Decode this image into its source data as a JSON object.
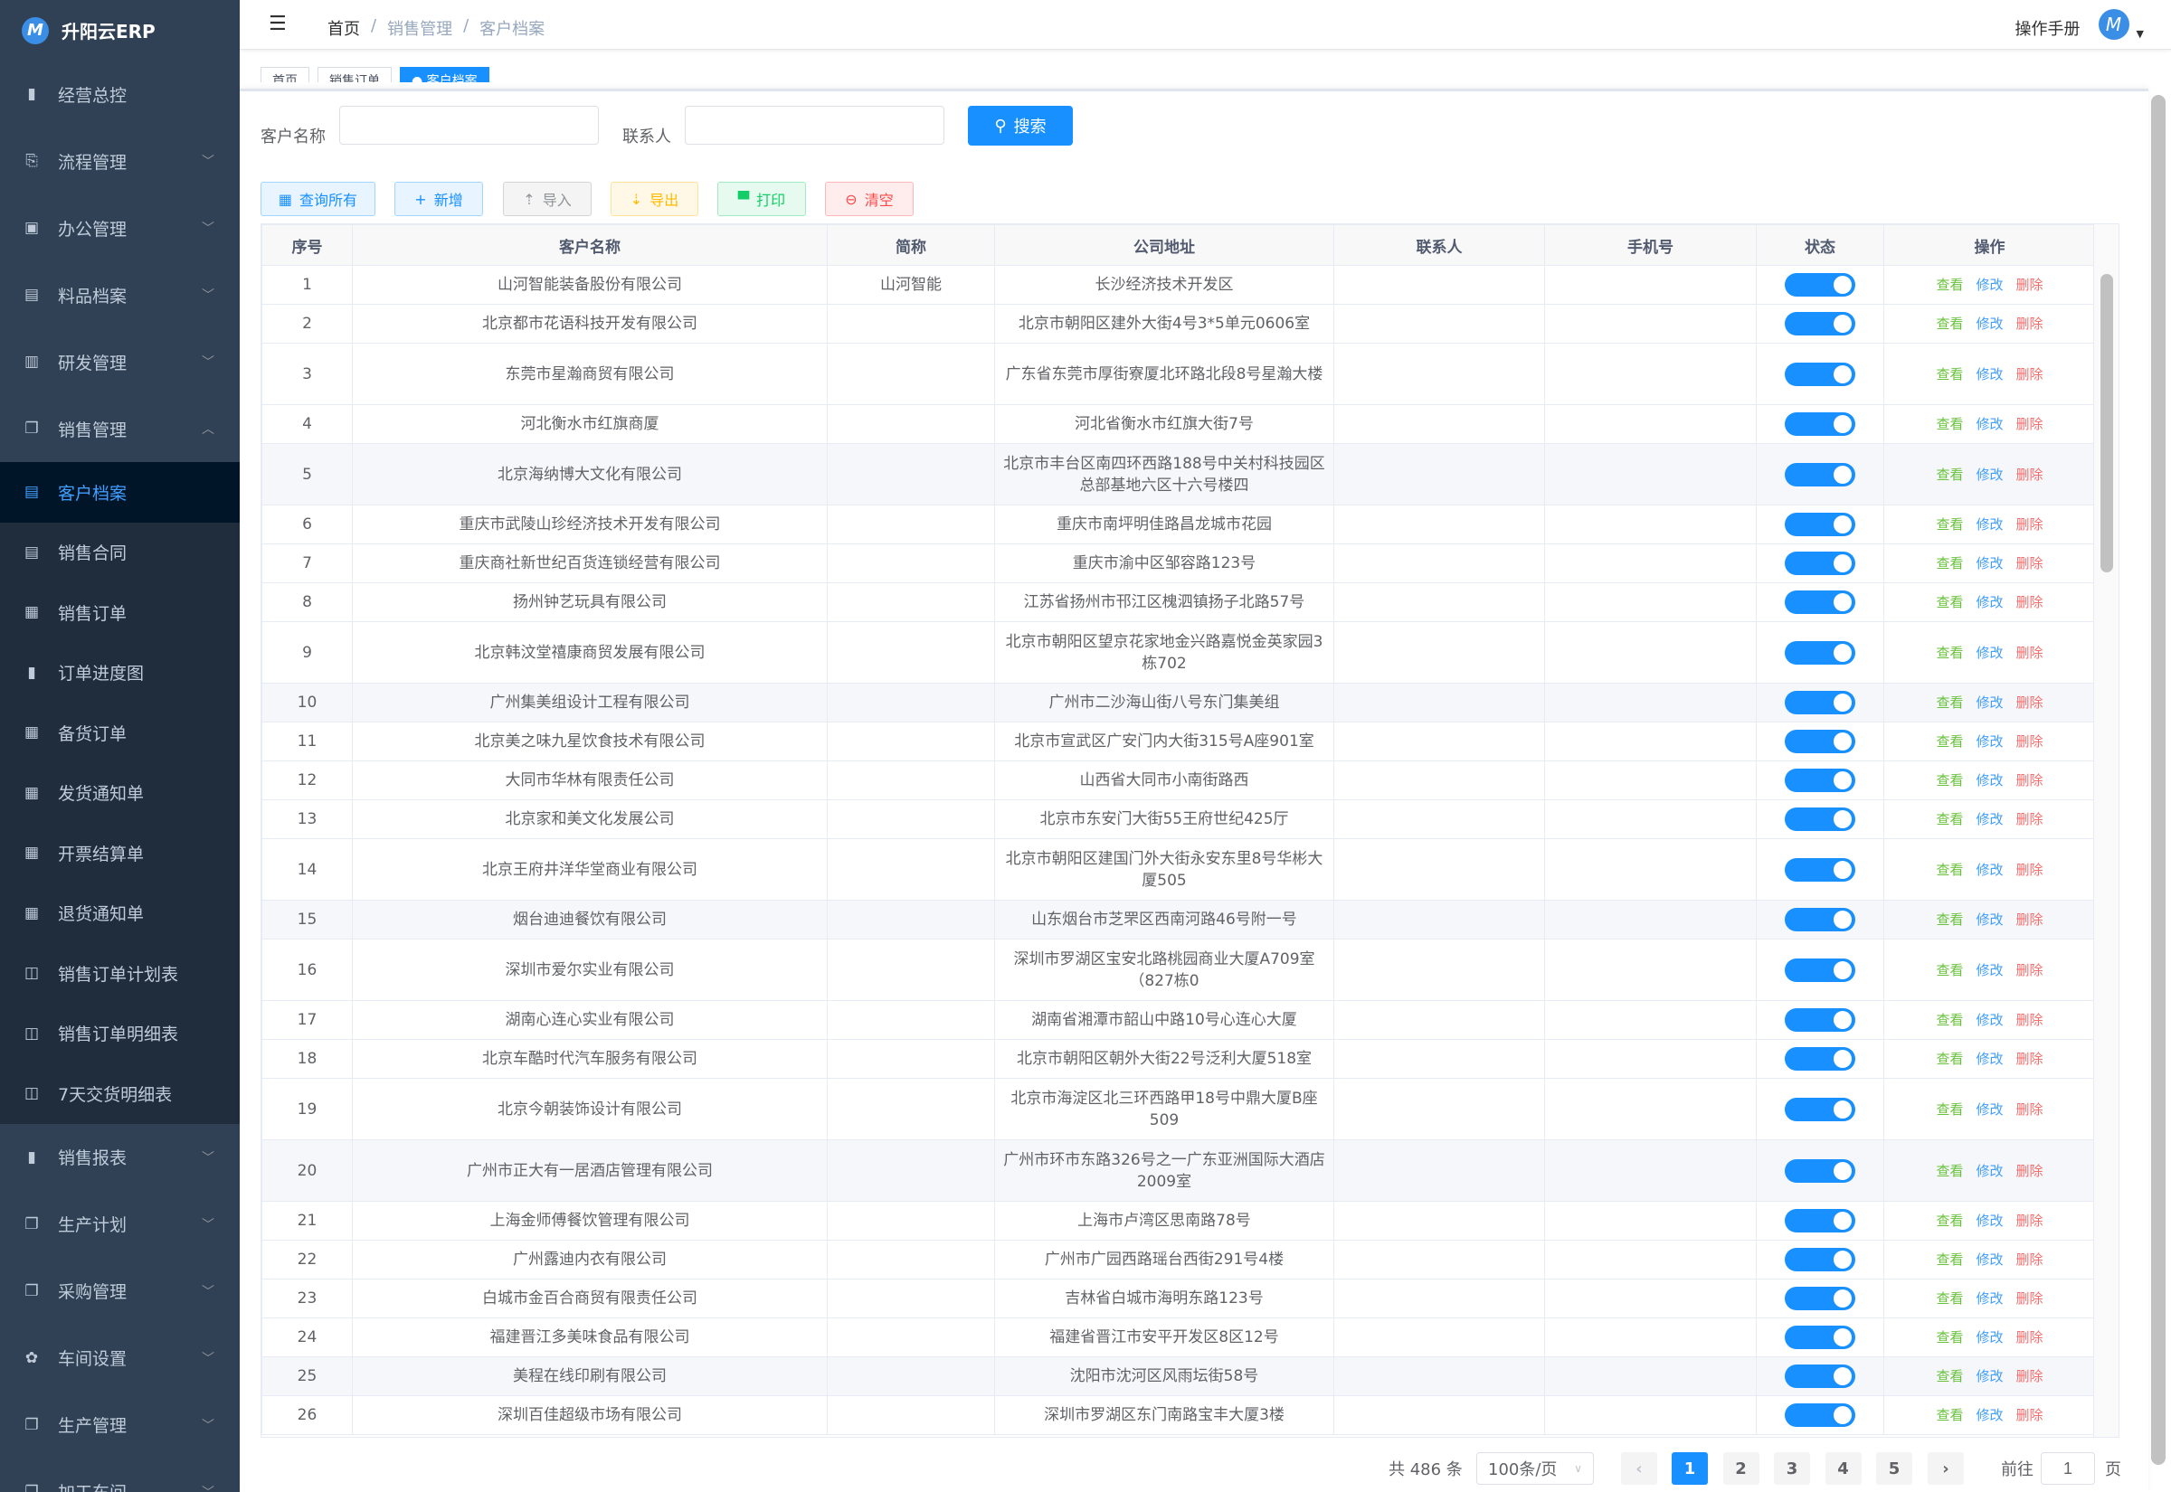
{
  "app": {
    "title": "升阳云ERP",
    "logo_letter": "M"
  },
  "sidebar": {
    "items": [
      {
        "label": "经营总控",
        "icon": "bar-chart-icon",
        "glyph": "▮",
        "chev": false
      },
      {
        "label": "流程管理",
        "icon": "workflow-icon",
        "glyph": "⎘",
        "chev": true
      },
      {
        "label": "办公管理",
        "icon": "office-icon",
        "glyph": "▣",
        "chev": true
      },
      {
        "label": "料品档案",
        "icon": "book-icon",
        "glyph": "▤",
        "chev": true
      },
      {
        "label": "研发管理",
        "icon": "rd-icon",
        "glyph": "▥",
        "chev": true
      },
      {
        "label": "销售管理",
        "icon": "documents-icon",
        "glyph": "❐",
        "chev": true,
        "open": true
      }
    ],
    "sub_items": [
      {
        "label": "客户档案",
        "icon": "document-icon",
        "glyph": "▤",
        "active": true
      },
      {
        "label": "销售合同",
        "icon": "document-icon",
        "glyph": "▤"
      },
      {
        "label": "销售订单",
        "icon": "table-icon",
        "glyph": "▦"
      },
      {
        "label": "订单进度图",
        "icon": "bar-chart-icon",
        "glyph": "▮"
      },
      {
        "label": "备货订单",
        "icon": "table-icon",
        "glyph": "▦"
      },
      {
        "label": "发货通知单",
        "icon": "table-icon",
        "glyph": "▦"
      },
      {
        "label": "开票结算单",
        "icon": "table-icon",
        "glyph": "▦"
      },
      {
        "label": "退货通知单",
        "icon": "table-icon",
        "glyph": "▦"
      },
      {
        "label": "销售订单计划表",
        "icon": "book-open-icon",
        "glyph": "◫"
      },
      {
        "label": "销售订单明细表",
        "icon": "book-open-icon",
        "glyph": "◫"
      },
      {
        "label": "7天交货明细表",
        "icon": "book-open-icon",
        "glyph": "◫"
      }
    ],
    "items_after": [
      {
        "label": "销售报表",
        "icon": "bar-chart-icon",
        "glyph": "▮"
      },
      {
        "label": "生产计划",
        "icon": "documents-icon",
        "glyph": "❐"
      },
      {
        "label": "采购管理",
        "icon": "documents-icon",
        "glyph": "❐"
      },
      {
        "label": "车间设置",
        "icon": "gear-icon",
        "glyph": "✿"
      },
      {
        "label": "生产管理",
        "icon": "documents-icon",
        "glyph": "❐"
      },
      {
        "label": "加工车间",
        "icon": "documents-icon",
        "glyph": "❐"
      }
    ]
  },
  "header": {
    "breadcrumb": [
      "首页",
      "销售管理",
      "客户档案"
    ],
    "manual": "操作手册",
    "avatar_letter": "M"
  },
  "tabs": [
    {
      "label": "首页"
    },
    {
      "label": "销售订单"
    },
    {
      "label": "● 客户档案",
      "active": true
    }
  ],
  "search": {
    "name_label": "客户名称",
    "name_value": "",
    "contact_label": "联系人",
    "contact_value": "",
    "button": "搜索"
  },
  "toolbar": [
    {
      "label": "查询所有",
      "icon": "grid-icon",
      "glyph": "▦",
      "color": "#1890ff",
      "bg": "#e8f4ff",
      "border": "#a3d3ff"
    },
    {
      "label": "新增",
      "icon": "plus-icon",
      "glyph": "+",
      "color": "#1890ff",
      "bg": "#e8f4ff",
      "border": "#a3d3ff"
    },
    {
      "label": "导入",
      "icon": "upload-icon",
      "glyph": "⇡",
      "color": "#909399",
      "bg": "#f4f4f5",
      "border": "#d3d4d6"
    },
    {
      "label": "导出",
      "icon": "download-icon",
      "glyph": "⇣",
      "color": "#ffba00",
      "bg": "#fff8e6",
      "border": "#ffe399"
    },
    {
      "label": "打印",
      "icon": "print-icon",
      "glyph": "▀",
      "color": "#13ce66",
      "bg": "#e7faf0",
      "border": "#a1ebc2"
    },
    {
      "label": "清空",
      "icon": "clear-icon",
      "glyph": "⊖",
      "color": "#ff4949",
      "bg": "#ffeded",
      "border": "#ffb6b6"
    }
  ],
  "table": {
    "columns": [
      "序号",
      "客户名称",
      "简称",
      "公司地址",
      "联系人",
      "手机号",
      "状态",
      "操作"
    ],
    "actions": {
      "view": "查看",
      "edit": "修改",
      "delete": "删除"
    },
    "rows": [
      {
        "no": "1",
        "name": "山河智能装备股份有限公司",
        "short": "山河智能",
        "addr": "长沙经济技术开发区",
        "contact": "",
        "phone": "",
        "on": true
      },
      {
        "no": "2",
        "name": "北京都市花语科技开发有限公司",
        "short": "",
        "addr": "北京市朝阳区建外大街4号3*5单元0606室",
        "contact": "",
        "phone": "",
        "on": true
      },
      {
        "no": "3",
        "name": "东莞市星瀚商贸有限公司",
        "short": "",
        "addr": "广东省东莞市厚街寮厦北环路北段8号星瀚大楼",
        "contact": "",
        "phone": "",
        "on": true
      },
      {
        "no": "4",
        "name": "河北衡水市红旗商厦",
        "short": "",
        "addr": "河北省衡水市红旗大街7号",
        "contact": "",
        "phone": "",
        "on": true
      },
      {
        "no": "5",
        "name": "北京海纳博大文化有限公司",
        "short": "",
        "addr": "北京市丰台区南四环西路188号中关村科技园区总部基地六区十六号楼四",
        "contact": "",
        "phone": "",
        "on": true,
        "hl": true
      },
      {
        "no": "6",
        "name": "重庆市武陵山珍经济技术开发有限公司",
        "short": "",
        "addr": "重庆市南坪明佳路昌龙城市花园",
        "contact": "",
        "phone": "",
        "on": true
      },
      {
        "no": "7",
        "name": "重庆商社新世纪百货连锁经营有限公司",
        "short": "",
        "addr": "重庆市渝中区邹容路123号",
        "contact": "",
        "phone": "",
        "on": true
      },
      {
        "no": "8",
        "name": "扬州钟艺玩具有限公司",
        "short": "",
        "addr": "江苏省扬州市邗江区槐泗镇扬子北路57号",
        "contact": "",
        "phone": "",
        "on": true
      },
      {
        "no": "9",
        "name": "北京韩汶堂禧康商贸发展有限公司",
        "short": "",
        "addr": "北京市朝阳区望京花家地金兴路嘉悦金英家园3栋702",
        "contact": "",
        "phone": "",
        "on": true
      },
      {
        "no": "10",
        "name": "广州集美组设计工程有限公司",
        "short": "",
        "addr": "广州市二沙海山街八号东门集美组",
        "contact": "",
        "phone": "",
        "on": true,
        "hl": true
      },
      {
        "no": "11",
        "name": "北京美之味九星饮食技术有限公司",
        "short": "",
        "addr": "北京市宣武区广安门内大街315号A座901室",
        "contact": "",
        "phone": "",
        "on": true
      },
      {
        "no": "12",
        "name": "大同市华林有限责任公司",
        "short": "",
        "addr": "山西省大同市小南街路西",
        "contact": "",
        "phone": "",
        "on": true
      },
      {
        "no": "13",
        "name": "北京家和美文化发展公司",
        "short": "",
        "addr": "北京市东安门大街55王府世纪425厅",
        "contact": "",
        "phone": "",
        "on": true
      },
      {
        "no": "14",
        "name": "北京王府井洋华堂商业有限公司",
        "short": "",
        "addr": "北京市朝阳区建国门外大街永安东里8号华彬大厦505",
        "contact": "",
        "phone": "",
        "on": true
      },
      {
        "no": "15",
        "name": "烟台迪迪餐饮有限公司",
        "short": "",
        "addr": "山东烟台市芝罘区西南河路46号附一号",
        "contact": "",
        "phone": "",
        "on": true,
        "hl": true
      },
      {
        "no": "16",
        "name": "深圳市爱尔实业有限公司",
        "short": "",
        "addr": "深圳市罗湖区宝安北路桃园商业大厦A709室（827栋0",
        "contact": "",
        "phone": "",
        "on": true
      },
      {
        "no": "17",
        "name": "湖南心连心实业有限公司",
        "short": "",
        "addr": "湖南省湘潭市韶山中路10号心连心大厦",
        "contact": "",
        "phone": "",
        "on": true
      },
      {
        "no": "18",
        "name": "北京车酷时代汽车服务有限公司",
        "short": "",
        "addr": "北京市朝阳区朝外大街22号泛利大厦518室",
        "contact": "",
        "phone": "",
        "on": true
      },
      {
        "no": "19",
        "name": "北京今朝装饰设计有限公司",
        "short": "",
        "addr": "北京市海淀区北三环西路甲18号中鼎大厦B座509",
        "contact": "",
        "phone": "",
        "on": true
      },
      {
        "no": "20",
        "name": "广州市正大有一居酒店管理有限公司",
        "short": "",
        "addr": "广州市环市东路326号之一广东亚洲国际大酒店2009室",
        "contact": "",
        "phone": "",
        "on": true,
        "hl": true
      },
      {
        "no": "21",
        "name": "上海金师傅餐饮管理有限公司",
        "short": "",
        "addr": "上海市卢湾区思南路78号",
        "contact": "",
        "phone": "",
        "on": true
      },
      {
        "no": "22",
        "name": "广州露迪内衣有限公司",
        "short": "",
        "addr": "广州市广园西路瑶台西街291号4楼",
        "contact": "",
        "phone": "",
        "on": true
      },
      {
        "no": "23",
        "name": "白城市金百合商贸有限责任公司",
        "short": "",
        "addr": "吉林省白城市海明东路123号",
        "contact": "",
        "phone": "",
        "on": true
      },
      {
        "no": "24",
        "name": "福建晋江多美味食品有限公司",
        "short": "",
        "addr": "福建省晋江市安平开发区8区12号",
        "contact": "",
        "phone": "",
        "on": true
      },
      {
        "no": "25",
        "name": "美程在线印刷有限公司",
        "short": "",
        "addr": "沈阳市沈河区风雨坛街58号",
        "contact": "",
        "phone": "",
        "on": true,
        "hl": true
      },
      {
        "no": "26",
        "name": "深圳百佳超级市场有限公司",
        "short": "",
        "addr": "深圳市罗湖区东门南路宝丰大厦3楼",
        "contact": "",
        "phone": "",
        "on": true
      }
    ]
  },
  "pagination": {
    "total": "共 486 条",
    "page_size": "100条/页",
    "pages": [
      "1",
      "2",
      "3",
      "4",
      "5"
    ],
    "current": "1",
    "goto_label": "前往",
    "goto_value": "1",
    "goto_suffix": "页"
  },
  "colors": {
    "sidebar": "#304156",
    "accent": "#1890ff",
    "view": "#67c23a",
    "edit": "#409eff",
    "delete": "#f56c6c"
  }
}
